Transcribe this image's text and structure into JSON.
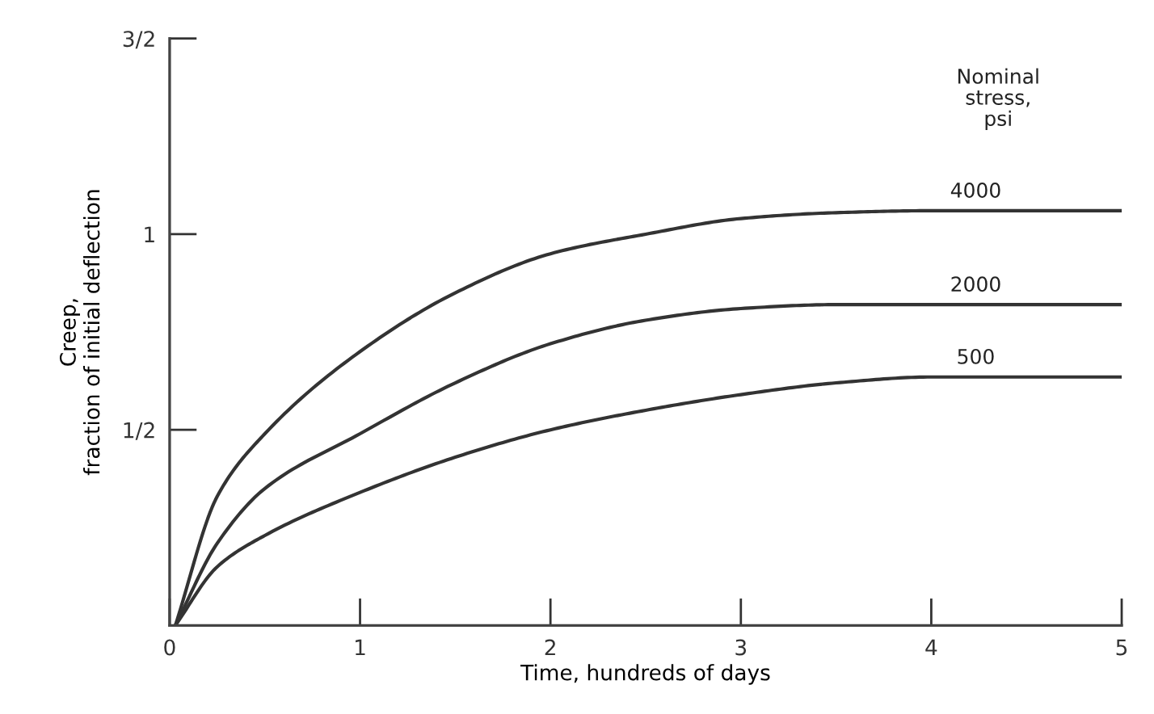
{
  "chart_data": {
    "type": "line",
    "xlabel": "Time, hundreds of days",
    "ylabel": "Creep,\nfraction of initial deflection",
    "legend_title": "Nominal\nstress,\npsi",
    "xlim": [
      0,
      5
    ],
    "ylim": [
      0,
      1.5
    ],
    "xticks": [
      0,
      1,
      2,
      3,
      4,
      5
    ],
    "yticks": [
      {
        "value": 0.5,
        "label": "1/2"
      },
      1,
      {
        "value": 1.5,
        "label": "3/2"
      }
    ],
    "grid": false,
    "legend": false,
    "marker": "none",
    "line_style": "solid",
    "series": [
      {
        "name": "4000",
        "color": "#333333",
        "x": [
          0.03,
          0.25,
          0.5,
          1,
          1.5,
          2,
          2.5,
          3,
          3.5,
          4,
          5
        ],
        "values": [
          0,
          0.33,
          0.49,
          0.7,
          0.85,
          0.95,
          1.0,
          1.04,
          1.055,
          1.06,
          1.06
        ]
      },
      {
        "name": "2000",
        "color": "#333333",
        "x": [
          0.03,
          0.25,
          0.5,
          1,
          1.5,
          2,
          2.5,
          3,
          3.5,
          4,
          5
        ],
        "values": [
          0,
          0.21,
          0.35,
          0.49,
          0.62,
          0.72,
          0.78,
          0.81,
          0.82,
          0.82,
          0.82
        ]
      },
      {
        "name": "500",
        "color": "#333333",
        "x": [
          0.03,
          0.25,
          0.5,
          1,
          1.5,
          2,
          2.5,
          3,
          3.5,
          4,
          5
        ],
        "values": [
          0,
          0.15,
          0.23,
          0.34,
          0.43,
          0.5,
          0.55,
          0.59,
          0.62,
          0.635,
          0.635
        ]
      }
    ]
  }
}
